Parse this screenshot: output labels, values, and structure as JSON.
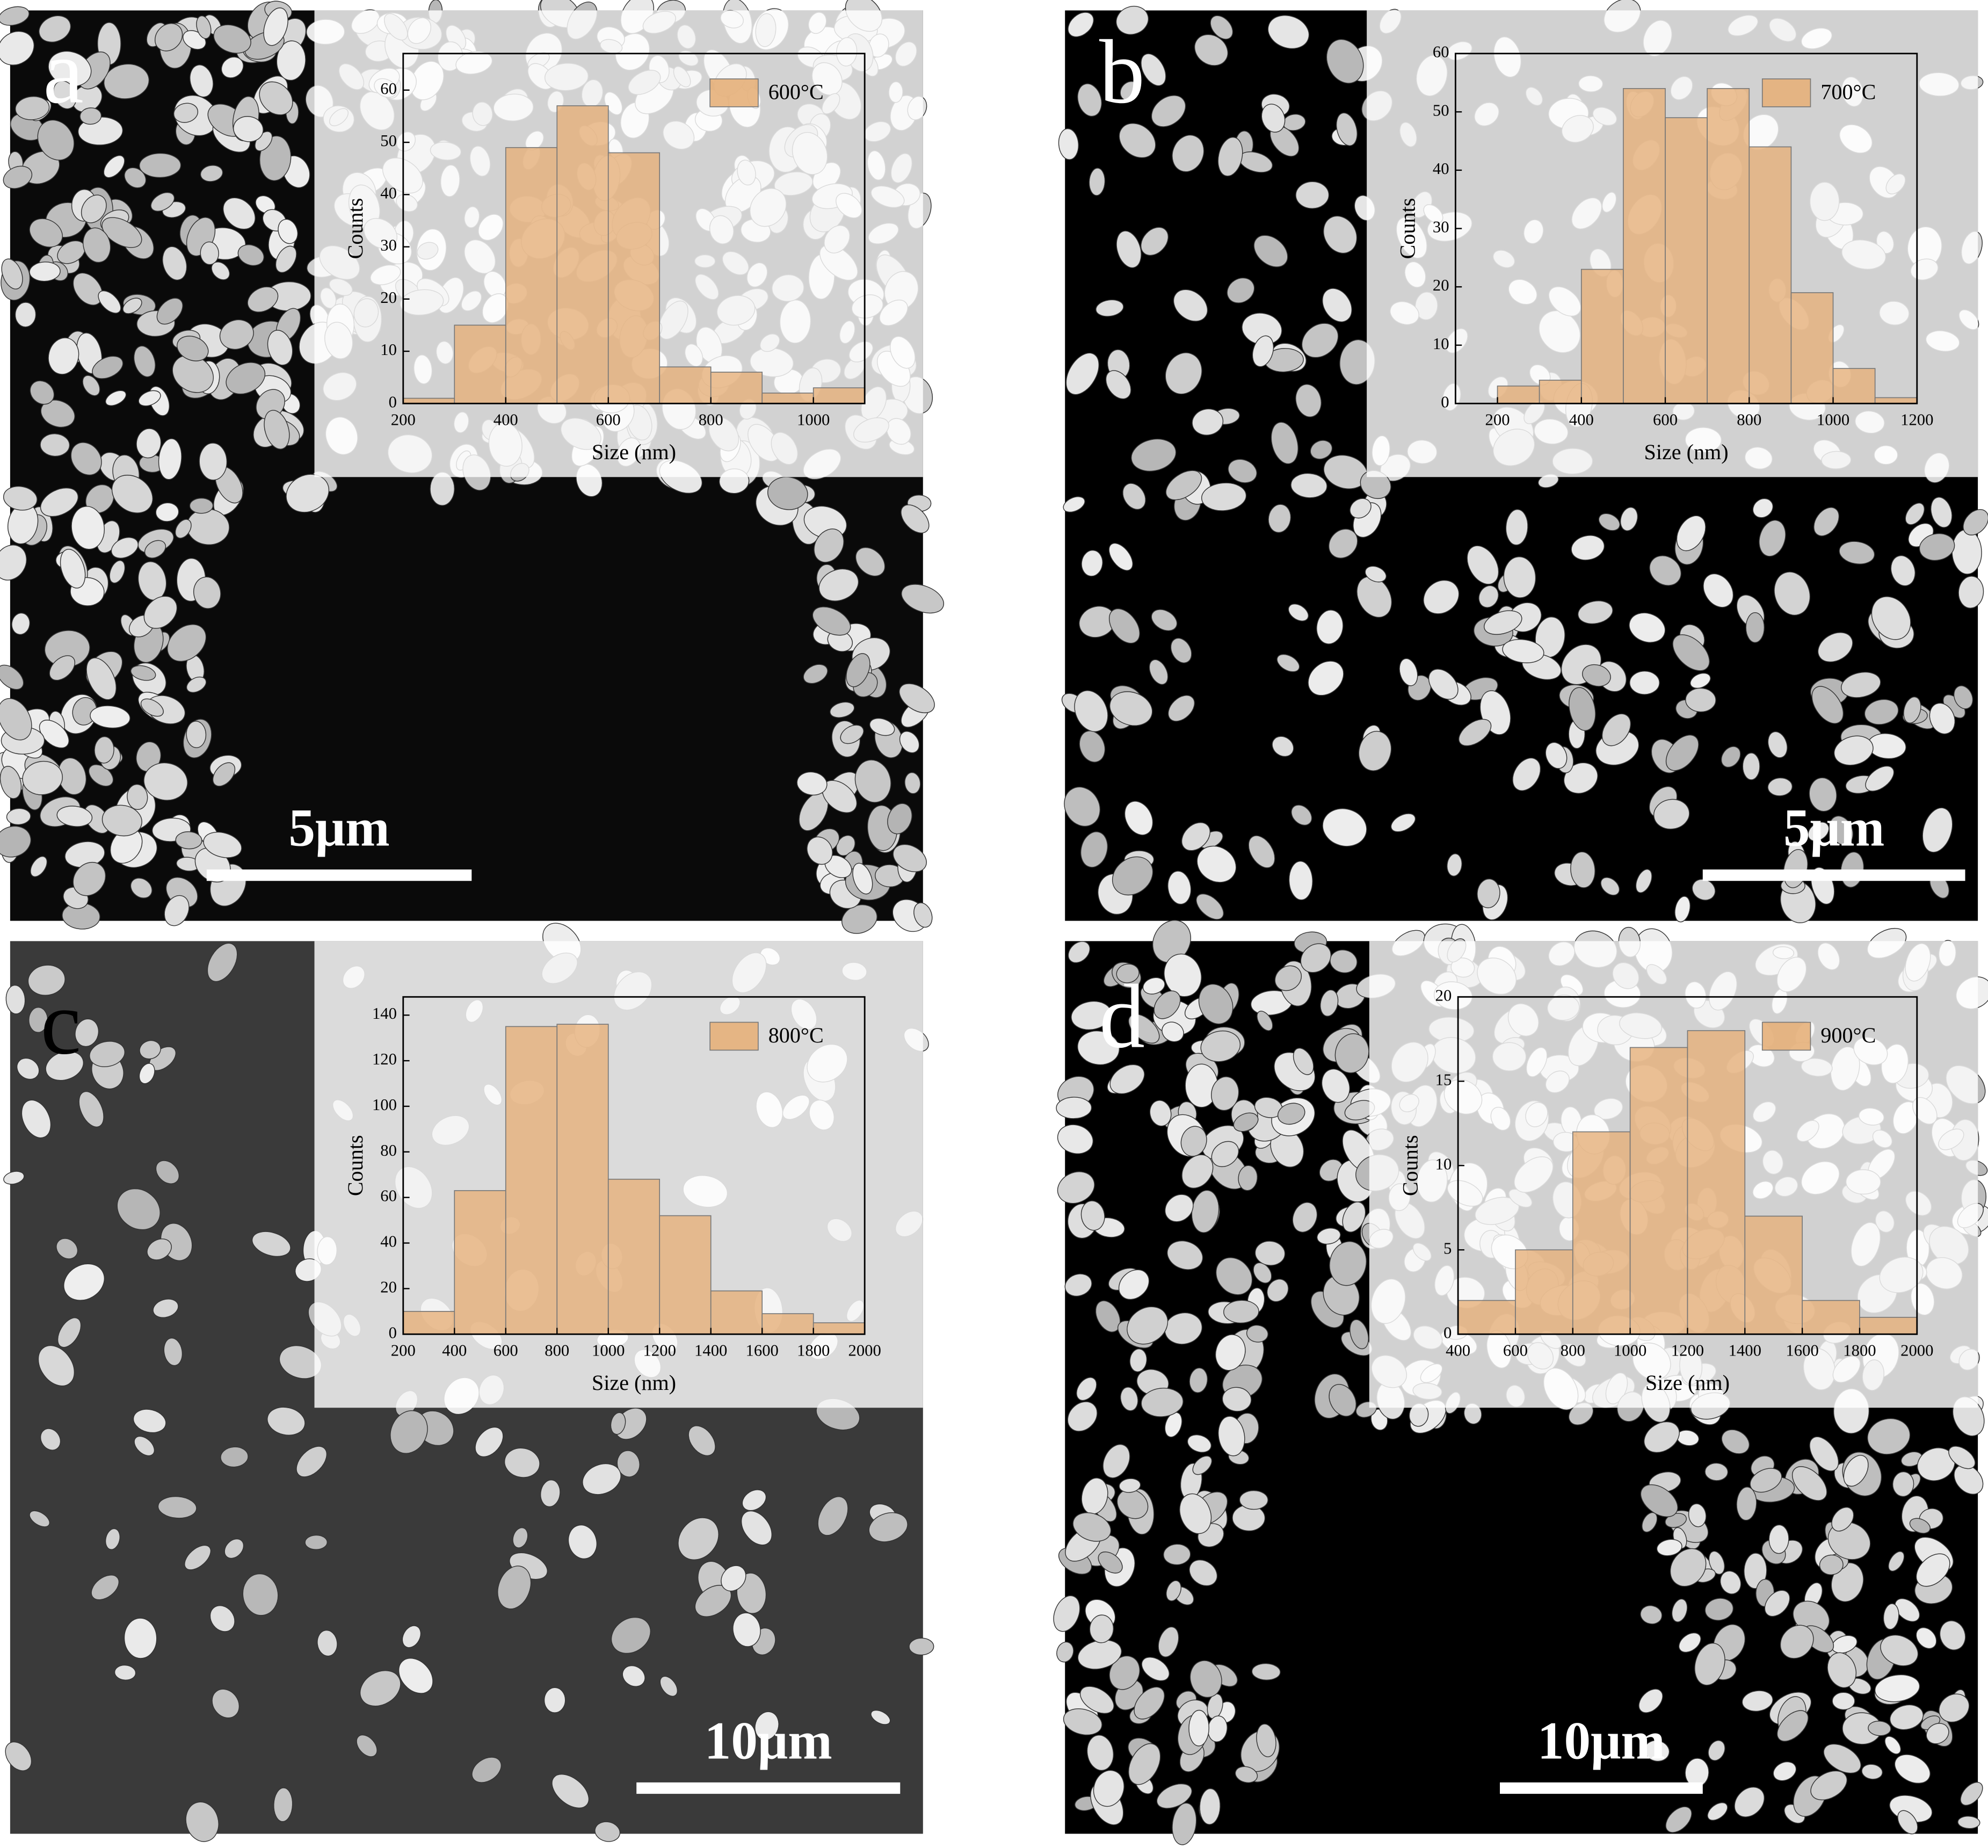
{
  "chart_data": [
    {
      "type": "histogram",
      "panel_label": "a",
      "scale_bar": "5μm",
      "xlabel": "Size (nm)",
      "ylabel": "Counts",
      "bins": [
        200,
        300,
        400,
        500,
        600,
        700,
        800,
        900,
        1000,
        1100
      ],
      "series": [
        {
          "name": "600°C",
          "color": "#e6b07a",
          "values": [
            1,
            15,
            49,
            57,
            48,
            7,
            6,
            2,
            3
          ]
        }
      ],
      "xlim": [
        200,
        1100
      ],
      "xticks": [
        200,
        400,
        600,
        800,
        1000
      ],
      "ylim": [
        0,
        67
      ],
      "yticks": [
        0,
        10,
        20,
        30,
        40,
        50,
        60
      ]
    },
    {
      "type": "histogram",
      "panel_label": "b",
      "scale_bar": "5μm",
      "xlabel": "Size (nm)",
      "ylabel": "Counts",
      "bins": [
        200,
        300,
        400,
        500,
        600,
        700,
        800,
        900,
        1000,
        1100,
        1200
      ],
      "series": [
        {
          "name": "700°C",
          "color": "#e6b07a",
          "values": [
            3,
            4,
            23,
            54,
            49,
            54,
            44,
            19,
            6,
            1
          ]
        }
      ],
      "xlim": [
        100,
        1200
      ],
      "xticks": [
        200,
        400,
        600,
        800,
        1000,
        1200
      ],
      "ylim": [
        0,
        60
      ],
      "yticks": [
        0,
        10,
        20,
        30,
        40,
        50,
        60
      ]
    },
    {
      "type": "histogram",
      "panel_label": "c",
      "scale_bar": "10μm",
      "xlabel": "Size (nm)",
      "ylabel": "Counts",
      "bins": [
        200,
        400,
        600,
        800,
        1000,
        1200,
        1400,
        1600,
        1800,
        2000
      ],
      "series": [
        {
          "name": "800°C",
          "color": "#e6b07a",
          "values": [
            10,
            63,
            135,
            136,
            68,
            52,
            19,
            9,
            5
          ]
        }
      ],
      "xlim": [
        200,
        2000
      ],
      "xticks": [
        200,
        400,
        600,
        800,
        1000,
        1200,
        1400,
        1600,
        1800,
        2000
      ],
      "ylim": [
        0,
        148
      ],
      "yticks": [
        0,
        20,
        40,
        60,
        80,
        100,
        120,
        140
      ]
    },
    {
      "type": "histogram",
      "panel_label": "d",
      "scale_bar": "10μm",
      "xlabel": "Size (nm)",
      "ylabel": "Counts",
      "bins": [
        400,
        600,
        800,
        1000,
        1200,
        1400,
        1600,
        1800,
        2000
      ],
      "series": [
        {
          "name": "900°C",
          "color": "#e6b07a",
          "values": [
            2,
            5,
            12,
            17,
            18,
            7,
            2,
            1
          ]
        }
      ],
      "xlim": [
        400,
        2000
      ],
      "xticks": [
        400,
        600,
        800,
        1000,
        1200,
        1400,
        1600,
        1800,
        2000
      ],
      "ylim": [
        0,
        20
      ],
      "yticks": [
        0,
        5,
        10,
        15,
        20
      ]
    }
  ]
}
